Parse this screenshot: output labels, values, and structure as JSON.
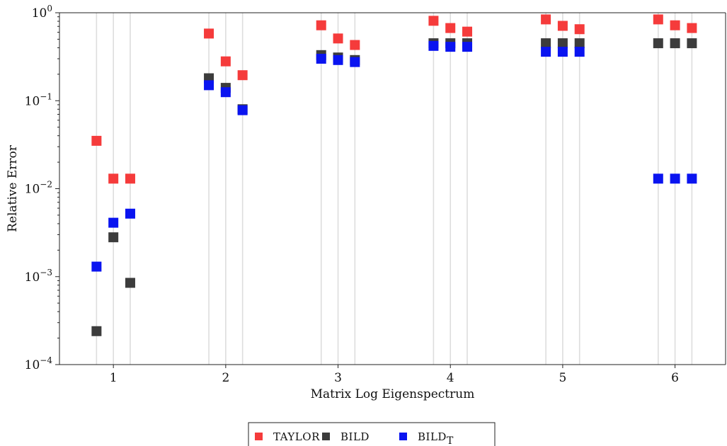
{
  "chart_data": {
    "type": "scatter",
    "xlabel": "Matrix Log Eigenspectrum",
    "ylabel": "Relative Error",
    "yscale": "log",
    "ylim": [
      0.0001,
      1
    ],
    "xlim": [
      0.52,
      6.45
    ],
    "x_ticks": [
      1,
      2,
      3,
      4,
      5,
      6
    ],
    "x_tick_labels": [
      "1",
      "2",
      "3",
      "4",
      "5",
      "6"
    ],
    "y_ticks": [
      {
        "value": 1,
        "base": "10",
        "exp": "0"
      },
      {
        "value": 0.1,
        "base": "10",
        "exp": "−1"
      },
      {
        "value": 0.01,
        "base": "10",
        "exp": "−2"
      },
      {
        "value": 0.001,
        "base": "10",
        "exp": "−3"
      },
      {
        "value": 0.0001,
        "base": "10",
        "exp": "−4"
      }
    ],
    "guide_lines_x": [
      0.85,
      1.0,
      1.15,
      1.85,
      2.0,
      2.15,
      2.85,
      3.0,
      3.15,
      3.85,
      4.0,
      4.15,
      4.85,
      5.0,
      5.15,
      5.85,
      6.0,
      6.15
    ],
    "grid": false,
    "legend_placement": "below",
    "series": [
      {
        "name": "TAYLOR",
        "color": "#f53b3b",
        "points": [
          [
            0.85,
            0.035
          ],
          [
            1.0,
            0.013
          ],
          [
            1.15,
            0.013
          ],
          [
            1.85,
            0.58
          ],
          [
            2.0,
            0.28
          ],
          [
            2.15,
            0.195
          ],
          [
            2.85,
            0.72
          ],
          [
            3.0,
            0.51
          ],
          [
            3.15,
            0.43
          ],
          [
            3.85,
            0.81
          ],
          [
            4.0,
            0.67
          ],
          [
            4.15,
            0.61
          ],
          [
            4.85,
            0.84
          ],
          [
            5.0,
            0.71
          ],
          [
            5.15,
            0.65
          ],
          [
            5.85,
            0.84
          ],
          [
            6.0,
            0.72
          ],
          [
            6.15,
            0.67
          ]
        ]
      },
      {
        "name": "BILD",
        "color": "#3c3c3c",
        "points": [
          [
            0.85,
            0.00024
          ],
          [
            1.0,
            0.0028
          ],
          [
            1.15,
            0.00085
          ],
          [
            1.85,
            0.18
          ],
          [
            2.0,
            0.14
          ],
          [
            2.15,
            0.08
          ],
          [
            2.85,
            0.33
          ],
          [
            3.0,
            0.31
          ],
          [
            3.15,
            0.29
          ],
          [
            3.85,
            0.45
          ],
          [
            4.0,
            0.45
          ],
          [
            4.15,
            0.45
          ],
          [
            4.85,
            0.45
          ],
          [
            5.0,
            0.45
          ],
          [
            5.15,
            0.45
          ],
          [
            5.85,
            0.45
          ],
          [
            6.0,
            0.45
          ],
          [
            6.15,
            0.45
          ]
        ]
      },
      {
        "name": "BILD",
        "name_subscript": "T",
        "color": "#0a14f0",
        "points": [
          [
            0.85,
            0.0013
          ],
          [
            1.0,
            0.0041
          ],
          [
            1.15,
            0.0052
          ],
          [
            1.85,
            0.15
          ],
          [
            2.0,
            0.125
          ],
          [
            2.15,
            0.078
          ],
          [
            2.85,
            0.3
          ],
          [
            3.0,
            0.29
          ],
          [
            3.15,
            0.275
          ],
          [
            3.85,
            0.42
          ],
          [
            4.0,
            0.41
          ],
          [
            4.15,
            0.41
          ],
          [
            4.85,
            0.36
          ],
          [
            5.0,
            0.36
          ],
          [
            5.15,
            0.36
          ],
          [
            5.85,
            0.013
          ],
          [
            6.0,
            0.013
          ],
          [
            6.15,
            0.013
          ]
        ]
      }
    ]
  }
}
